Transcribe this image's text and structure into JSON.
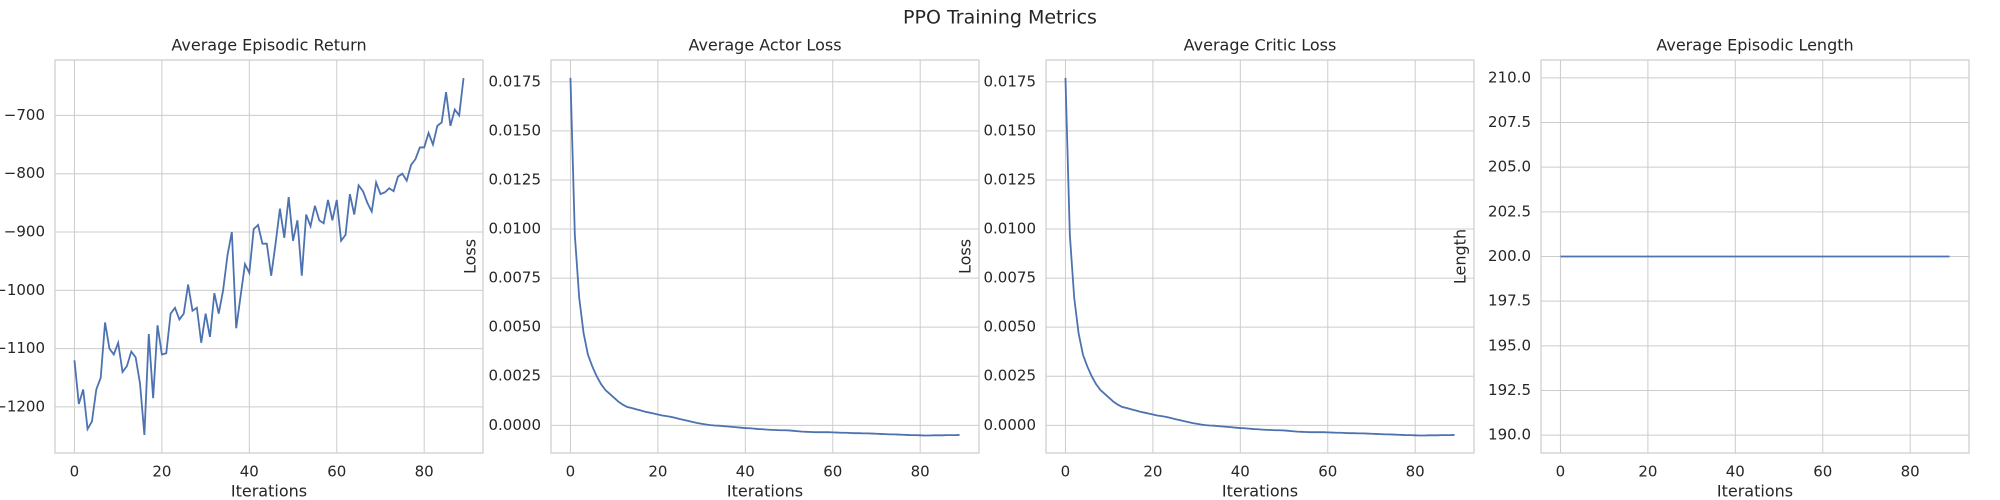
{
  "title": "PPO Training Metrics",
  "chart_data": [
    {
      "type": "line",
      "title": "Average Episodic Return",
      "xlabel": "Iterations",
      "color": "#4c72b0",
      "grid": true,
      "x": [
        0,
        1,
        2,
        3,
        4,
        5,
        6,
        7,
        8,
        9,
        10,
        11,
        12,
        13,
        14,
        15,
        16,
        17,
        18,
        19,
        20,
        21,
        22,
        23,
        24,
        25,
        26,
        27,
        28,
        29,
        30,
        31,
        32,
        33,
        34,
        35,
        36,
        37,
        38,
        39,
        40,
        41,
        42,
        43,
        44,
        45,
        46,
        47,
        48,
        49,
        50,
        51,
        52,
        53,
        54,
        55,
        56,
        57,
        58,
        59,
        60,
        61,
        62,
        63,
        64,
        65,
        66,
        67,
        68,
        69,
        70,
        71,
        72,
        73,
        74,
        75,
        76,
        77,
        78,
        79,
        80,
        81,
        82,
        83,
        84,
        85,
        86,
        87,
        88,
        89
      ],
      "values": [
        -1120,
        -1195,
        -1170,
        -1238,
        -1225,
        -1170,
        -1150,
        -1055,
        -1100,
        -1110,
        -1090,
        -1140,
        -1130,
        -1105,
        -1115,
        -1160,
        -1248,
        -1075,
        -1185,
        -1060,
        -1110,
        -1108,
        -1040,
        -1030,
        -1050,
        -1040,
        -990,
        -1035,
        -1030,
        -1090,
        -1040,
        -1080,
        -1005,
        -1040,
        -1000,
        -940,
        -900,
        -1065,
        -1010,
        -955,
        -970,
        -895,
        -888,
        -920,
        -920,
        -975,
        -920,
        -860,
        -910,
        -840,
        -915,
        -880,
        -975,
        -870,
        -890,
        -855,
        -880,
        -885,
        -845,
        -880,
        -845,
        -915,
        -905,
        -835,
        -870,
        -820,
        -830,
        -850,
        -865,
        -815,
        -835,
        -832,
        -825,
        -830,
        -805,
        -800,
        -812,
        -785,
        -775,
        -755,
        -755,
        -730,
        -750,
        -718,
        -712,
        -660,
        -718,
        -690,
        -700,
        -636
      ],
      "xlim": [
        -4.45,
        93.45
      ],
      "xticks": [
        0,
        20,
        40,
        60,
        80
      ],
      "ylim": [
        -1279,
        -605
      ],
      "yticks": [
        {
          "value": -1200,
          "label": "−1200"
        },
        {
          "value": -1100,
          "label": "−1100"
        },
        {
          "value": -1000,
          "label": "−1000"
        },
        {
          "value": -900,
          "label": "−900"
        },
        {
          "value": -800,
          "label": "−800"
        },
        {
          "value": -700,
          "label": "−700"
        }
      ]
    },
    {
      "type": "line",
      "title": "Average Actor Loss",
      "xlabel": "Iterations",
      "ylabel": "Loss",
      "color": "#4c72b0",
      "grid": true,
      "x": [
        0,
        1,
        2,
        3,
        4,
        5,
        6,
        7,
        8,
        9,
        10,
        11,
        12,
        13,
        14,
        15,
        16,
        17,
        18,
        19,
        20,
        21,
        22,
        23,
        24,
        25,
        26,
        27,
        28,
        29,
        30,
        31,
        32,
        33,
        34,
        35,
        36,
        37,
        38,
        39,
        40,
        41,
        42,
        43,
        44,
        45,
        46,
        47,
        48,
        49,
        50,
        51,
        52,
        53,
        54,
        55,
        56,
        57,
        58,
        59,
        60,
        61,
        62,
        63,
        64,
        65,
        66,
        67,
        68,
        69,
        70,
        71,
        72,
        73,
        74,
        75,
        76,
        77,
        78,
        79,
        80,
        81,
        82,
        83,
        84,
        85,
        86,
        87,
        88,
        89
      ],
      "values": [
        0.0177,
        0.0097,
        0.0065,
        0.0047,
        0.0036,
        0.003,
        0.0025,
        0.0021,
        0.0018,
        0.0016,
        0.0014,
        0.0012,
        0.00105,
        0.00093,
        0.00088,
        0.00082,
        0.00076,
        0.0007,
        0.00065,
        0.0006,
        0.00055,
        0.0005,
        0.00047,
        0.00043,
        0.00038,
        0.00032,
        0.00027,
        0.00022,
        0.00017,
        0.00012,
        8e-05,
        4e-05,
        1e-05,
        -1e-05,
        -2e-05,
        -4e-05,
        -6e-05,
        -8e-05,
        -0.0001,
        -0.00012,
        -0.00014,
        -0.00015,
        -0.00017,
        -0.00019,
        -0.0002,
        -0.00022,
        -0.00023,
        -0.00024,
        -0.00025,
        -0.00025,
        -0.00026,
        -0.00028,
        -0.0003,
        -0.00032,
        -0.00033,
        -0.00034,
        -0.00035,
        -0.00035,
        -0.00035,
        -0.00035,
        -0.00036,
        -0.00037,
        -0.00038,
        -0.00038,
        -0.00039,
        -0.0004,
        -0.0004,
        -0.00041,
        -0.00041,
        -0.00042,
        -0.00043,
        -0.00044,
        -0.00045,
        -0.00046,
        -0.00046,
        -0.00047,
        -0.00048,
        -0.00049,
        -0.0005,
        -0.0005,
        -0.00051,
        -0.00052,
        -0.00052,
        -0.00051,
        -0.00051,
        -0.00051,
        -0.0005,
        -0.0005,
        -0.0005,
        -0.00049
      ],
      "xlim": [
        -4.45,
        93.45
      ],
      "xticks": [
        0,
        20,
        40,
        60,
        80
      ],
      "ylim": [
        -0.00141,
        0.01861
      ],
      "yticks": [
        {
          "value": 0,
          "label": "0.0000"
        },
        {
          "value": 0.0025,
          "label": "0.0025"
        },
        {
          "value": 0.005,
          "label": "0.0050"
        },
        {
          "value": 0.0075,
          "label": "0.0075"
        },
        {
          "value": 0.01,
          "label": "0.0100"
        },
        {
          "value": 0.0125,
          "label": "0.0125"
        },
        {
          "value": 0.015,
          "label": "0.0150"
        },
        {
          "value": 0.0175,
          "label": "0.0175"
        }
      ]
    },
    {
      "type": "line",
      "title": "Average Critic Loss",
      "xlabel": "Iterations",
      "ylabel": "Loss",
      "color": "#4c72b0",
      "grid": true,
      "x": [
        0,
        1,
        2,
        3,
        4,
        5,
        6,
        7,
        8,
        9,
        10,
        11,
        12,
        13,
        14,
        15,
        16,
        17,
        18,
        19,
        20,
        21,
        22,
        23,
        24,
        25,
        26,
        27,
        28,
        29,
        30,
        31,
        32,
        33,
        34,
        35,
        36,
        37,
        38,
        39,
        40,
        41,
        42,
        43,
        44,
        45,
        46,
        47,
        48,
        49,
        50,
        51,
        52,
        53,
        54,
        55,
        56,
        57,
        58,
        59,
        60,
        61,
        62,
        63,
        64,
        65,
        66,
        67,
        68,
        69,
        70,
        71,
        72,
        73,
        74,
        75,
        76,
        77,
        78,
        79,
        80,
        81,
        82,
        83,
        84,
        85,
        86,
        87,
        88,
        89
      ],
      "values": [
        0.0177,
        0.0097,
        0.0065,
        0.0047,
        0.0036,
        0.003,
        0.0025,
        0.0021,
        0.0018,
        0.0016,
        0.0014,
        0.0012,
        0.00105,
        0.00093,
        0.00088,
        0.00082,
        0.00076,
        0.0007,
        0.00065,
        0.0006,
        0.00055,
        0.0005,
        0.00047,
        0.00043,
        0.00038,
        0.00032,
        0.00027,
        0.00022,
        0.00017,
        0.00012,
        8e-05,
        4e-05,
        1e-05,
        -1e-05,
        -2e-05,
        -4e-05,
        -6e-05,
        -8e-05,
        -0.0001,
        -0.00012,
        -0.00014,
        -0.00015,
        -0.00017,
        -0.00019,
        -0.0002,
        -0.00022,
        -0.00023,
        -0.00024,
        -0.00025,
        -0.00025,
        -0.00026,
        -0.00028,
        -0.0003,
        -0.00032,
        -0.00033,
        -0.00034,
        -0.00035,
        -0.00035,
        -0.00035,
        -0.00035,
        -0.00036,
        -0.00037,
        -0.00038,
        -0.00038,
        -0.00039,
        -0.0004,
        -0.0004,
        -0.00041,
        -0.00041,
        -0.00042,
        -0.00043,
        -0.00044,
        -0.00045,
        -0.00046,
        -0.00046,
        -0.00047,
        -0.00048,
        -0.00049,
        -0.0005,
        -0.0005,
        -0.00051,
        -0.00052,
        -0.00052,
        -0.00051,
        -0.00051,
        -0.00051,
        -0.0005,
        -0.0005,
        -0.0005,
        -0.00049
      ],
      "xlim": [
        -4.45,
        93.45
      ],
      "xticks": [
        0,
        20,
        40,
        60,
        80
      ],
      "ylim": [
        -0.00141,
        0.01861
      ],
      "yticks": [
        {
          "value": 0,
          "label": "0.0000"
        },
        {
          "value": 0.0025,
          "label": "0.0025"
        },
        {
          "value": 0.005,
          "label": "0.0050"
        },
        {
          "value": 0.0075,
          "label": "0.0075"
        },
        {
          "value": 0.01,
          "label": "0.0100"
        },
        {
          "value": 0.0125,
          "label": "0.0125"
        },
        {
          "value": 0.015,
          "label": "0.0150"
        },
        {
          "value": 0.0175,
          "label": "0.0175"
        }
      ]
    },
    {
      "type": "line",
      "title": "Average Episodic Length",
      "xlabel": "Iterations",
      "ylabel": "Length",
      "color": "#4c72b0",
      "grid": true,
      "x": [
        0,
        1,
        2,
        3,
        4,
        5,
        6,
        7,
        8,
        9,
        10,
        11,
        12,
        13,
        14,
        15,
        16,
        17,
        18,
        19,
        20,
        21,
        22,
        23,
        24,
        25,
        26,
        27,
        28,
        29,
        30,
        31,
        32,
        33,
        34,
        35,
        36,
        37,
        38,
        39,
        40,
        41,
        42,
        43,
        44,
        45,
        46,
        47,
        48,
        49,
        50,
        51,
        52,
        53,
        54,
        55,
        56,
        57,
        58,
        59,
        60,
        61,
        62,
        63,
        64,
        65,
        66,
        67,
        68,
        69,
        70,
        71,
        72,
        73,
        74,
        75,
        76,
        77,
        78,
        79,
        80,
        81,
        82,
        83,
        84,
        85,
        86,
        87,
        88,
        89
      ],
      "values": [
        200,
        200,
        200,
        200,
        200,
        200,
        200,
        200,
        200,
        200,
        200,
        200,
        200,
        200,
        200,
        200,
        200,
        200,
        200,
        200,
        200,
        200,
        200,
        200,
        200,
        200,
        200,
        200,
        200,
        200,
        200,
        200,
        200,
        200,
        200,
        200,
        200,
        200,
        200,
        200,
        200,
        200,
        200,
        200,
        200,
        200,
        200,
        200,
        200,
        200,
        200,
        200,
        200,
        200,
        200,
        200,
        200,
        200,
        200,
        200,
        200,
        200,
        200,
        200,
        200,
        200,
        200,
        200,
        200,
        200,
        200,
        200,
        200,
        200,
        200,
        200,
        200,
        200,
        200,
        200,
        200,
        200,
        200,
        200,
        200,
        200,
        200,
        200,
        200,
        200
      ],
      "xlim": [
        -4.45,
        93.45
      ],
      "xticks": [
        0,
        20,
        40,
        60,
        80
      ],
      "ylim": [
        189,
        211
      ],
      "yticks": [
        {
          "value": 190,
          "label": "190.0"
        },
        {
          "value": 192.5,
          "label": "192.5"
        },
        {
          "value": 195,
          "label": "195.0"
        },
        {
          "value": 197.5,
          "label": "197.5"
        },
        {
          "value": 200,
          "label": "200.0"
        },
        {
          "value": 202.5,
          "label": "202.5"
        },
        {
          "value": 205,
          "label": "205.0"
        },
        {
          "value": 207.5,
          "label": "207.5"
        },
        {
          "value": 210,
          "label": "210.0"
        }
      ]
    }
  ]
}
